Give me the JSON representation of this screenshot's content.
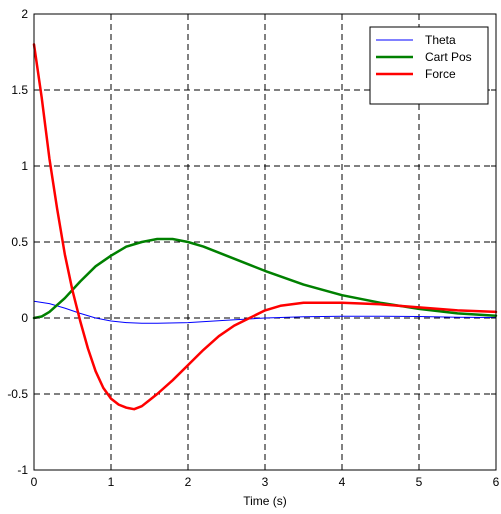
{
  "chart_data": {
    "type": "line",
    "title": "",
    "xlabel": "Time (s)",
    "ylabel": "",
    "xlim": [
      0,
      6
    ],
    "ylim": [
      -1,
      2
    ],
    "xticks": [
      0,
      1,
      2,
      3,
      4,
      5,
      6
    ],
    "yticks": [
      -1,
      -0.5,
      0,
      0.5,
      1,
      1.5,
      2
    ],
    "xtick_labels": [
      "0",
      "1",
      "2",
      "3",
      "4",
      "5",
      "6"
    ],
    "ytick_labels": [
      "-1",
      "-0.5",
      "0",
      "0.5",
      "1",
      "1.5",
      "2"
    ],
    "grid": true,
    "legend_position": "top-right",
    "series": [
      {
        "name": "Theta",
        "color": "#0000ff",
        "x": [
          0,
          0.2,
          0.4,
          0.6,
          0.8,
          1.0,
          1.2,
          1.4,
          1.6,
          2.0,
          2.5,
          3.0,
          3.5,
          4.0,
          4.5,
          5.0,
          5.5,
          6.0
        ],
        "y": [
          0.11,
          0.095,
          0.065,
          0.03,
          0.0,
          -0.02,
          -0.03,
          -0.035,
          -0.035,
          -0.03,
          -0.015,
          0.0,
          0.008,
          0.012,
          0.012,
          0.01,
          0.005,
          0.003
        ]
      },
      {
        "name": "Cart Pos",
        "color": "#008000",
        "x": [
          0,
          0.1,
          0.2,
          0.4,
          0.6,
          0.8,
          1.0,
          1.2,
          1.4,
          1.6,
          1.8,
          2.0,
          2.2,
          2.5,
          2.8,
          3.0,
          3.5,
          4.0,
          4.5,
          5.0,
          5.5,
          6.0
        ],
        "y": [
          0.0,
          0.01,
          0.04,
          0.13,
          0.24,
          0.34,
          0.41,
          0.47,
          0.5,
          0.52,
          0.52,
          0.5,
          0.47,
          0.41,
          0.35,
          0.31,
          0.22,
          0.15,
          0.1,
          0.06,
          0.03,
          0.015
        ]
      },
      {
        "name": "Force",
        "color": "#ff0000",
        "x": [
          0,
          0.1,
          0.2,
          0.3,
          0.4,
          0.5,
          0.6,
          0.7,
          0.8,
          0.9,
          1.0,
          1.1,
          1.2,
          1.3,
          1.4,
          1.5,
          1.6,
          1.8,
          2.0,
          2.2,
          2.4,
          2.6,
          2.8,
          3.0,
          3.2,
          3.5,
          4.0,
          4.5,
          5.0,
          5.5,
          6.0
        ],
        "y": [
          1.8,
          1.45,
          1.05,
          0.72,
          0.42,
          0.18,
          -0.02,
          -0.2,
          -0.35,
          -0.46,
          -0.53,
          -0.57,
          -0.59,
          -0.6,
          -0.58,
          -0.54,
          -0.5,
          -0.41,
          -0.31,
          -0.21,
          -0.12,
          -0.05,
          0.0,
          0.05,
          0.08,
          0.1,
          0.1,
          0.09,
          0.07,
          0.05,
          0.04
        ]
      }
    ]
  }
}
